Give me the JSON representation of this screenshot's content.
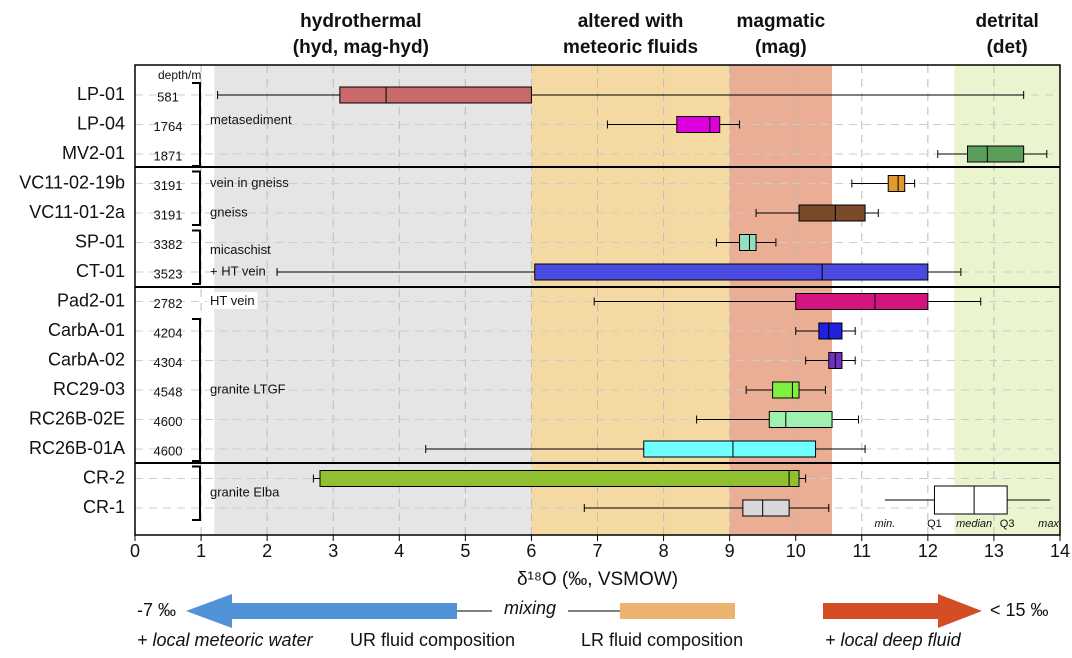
{
  "chart_data": {
    "type": "boxplot",
    "regions": [
      {
        "label": [
          "hydrothermal",
          "(hyd, mag-hyd)"
        ],
        "range": [
          1.2,
          6
        ],
        "color": "#e5e5e5"
      },
      {
        "label": [
          "altered with",
          "meteoric fluids"
        ],
        "range": [
          6,
          9
        ],
        "color": "#f4d9a3"
      },
      {
        "label": [
          "magmatic",
          "(mag)"
        ],
        "range": [
          9,
          10.55
        ],
        "color": "#e9ae94"
      },
      {
        "label": [
          "detrital",
          "(det)"
        ],
        "range": [
          12.4,
          14
        ],
        "color": "#eaf4cf"
      }
    ],
    "categories": [
      "LP-01",
      "LP-04",
      "MV2-01",
      "VC11-02-19b",
      "VC11-01-2a",
      "SP-01",
      "CT-01",
      "Pad2-01",
      "CarbA-01",
      "CarbA-02",
      "RC29-03",
      "RC26B-02E",
      "RC26B-01A",
      "CR-2",
      "CR-1"
    ],
    "depth_label": "depth/m",
    "depths": [
      581,
      1764,
      1871,
      3191,
      3191,
      3382,
      3523,
      2782,
      4204,
      4304,
      4548,
      4600,
      4600
    ],
    "groups": [
      "metasediment",
      "vein in gneiss",
      "gneiss",
      "micaschist",
      "+ HT vein",
      "HT vein",
      "granite LTGF",
      "granite Elba"
    ],
    "boxes": [
      {
        "min": 1.25,
        "q1": 3.1,
        "median": 3.8,
        "q3": 6.0,
        "max": 13.45,
        "color": "#c96a6a"
      },
      {
        "min": 7.15,
        "q1": 8.2,
        "median": 8.7,
        "q3": 8.85,
        "max": 9.15,
        "color": "#dd00dd"
      },
      {
        "min": 12.15,
        "q1": 12.6,
        "median": 12.9,
        "q3": 13.45,
        "max": 13.8,
        "color": "#5a9e5a"
      },
      {
        "min": 10.85,
        "q1": 11.4,
        "median": 11.55,
        "q3": 11.65,
        "max": 11.8,
        "color": "#e09a30"
      },
      {
        "min": 9.4,
        "q1": 10.05,
        "median": 10.6,
        "q3": 11.05,
        "max": 11.25,
        "color": "#7a4a2a"
      },
      {
        "min": 8.8,
        "q1": 9.15,
        "median": 9.3,
        "q3": 9.4,
        "max": 9.7,
        "color": "#8fe0c0"
      },
      {
        "min": 2.15,
        "q1": 6.05,
        "median": 10.4,
        "q3": 12.0,
        "max": 12.5,
        "color": "#4a4ae0"
      },
      {
        "min": 6.95,
        "q1": 10.0,
        "median": 11.2,
        "q3": 12.0,
        "max": 12.8,
        "color": "#d4157f"
      },
      {
        "min": 10.0,
        "q1": 10.35,
        "median": 10.5,
        "q3": 10.7,
        "max": 10.9,
        "color": "#2020e0"
      },
      {
        "min": 10.15,
        "q1": 10.5,
        "median": 10.6,
        "q3": 10.7,
        "max": 10.9,
        "color": "#7030c0"
      },
      {
        "min": 9.25,
        "q1": 9.65,
        "median": 9.95,
        "q3": 10.05,
        "max": 10.45,
        "color": "#80f040"
      },
      {
        "min": 8.5,
        "q1": 9.6,
        "median": 9.85,
        "q3": 10.55,
        "max": 10.95,
        "color": "#a0f0b0"
      },
      {
        "min": 4.4,
        "q1": 7.7,
        "median": 9.05,
        "q3": 10.3,
        "max": 11.05,
        "color": "#70ffff"
      },
      {
        "min": 2.7,
        "q1": 2.8,
        "median": 9.9,
        "q3": 10.05,
        "max": 10.15,
        "color": "#90c030"
      },
      {
        "min": 6.8,
        "q1": 9.2,
        "median": 9.5,
        "q3": 9.9,
        "max": 10.5,
        "color": "#d8d8d8"
      }
    ],
    "xlim": [
      0,
      14
    ],
    "xticks": [
      0,
      1,
      2,
      3,
      4,
      5,
      6,
      7,
      8,
      9,
      10,
      11,
      12,
      13,
      14
    ],
    "grid": true,
    "x_label": "δ¹⁸O (‰, VSMOW)",
    "legend": {
      "min": "min.",
      "q1": "Q1",
      "median": "median",
      "q3": "Q3",
      "max": "max."
    },
    "bottom": {
      "left_end": "-7 ‰",
      "mixing": "mixing",
      "right_end": "< 15 ‰",
      "meteoric": "+ local meteoric water",
      "ur": "UR fluid composition",
      "lr": "LR fluid composition",
      "deep": "+ local deep fluid"
    }
  }
}
